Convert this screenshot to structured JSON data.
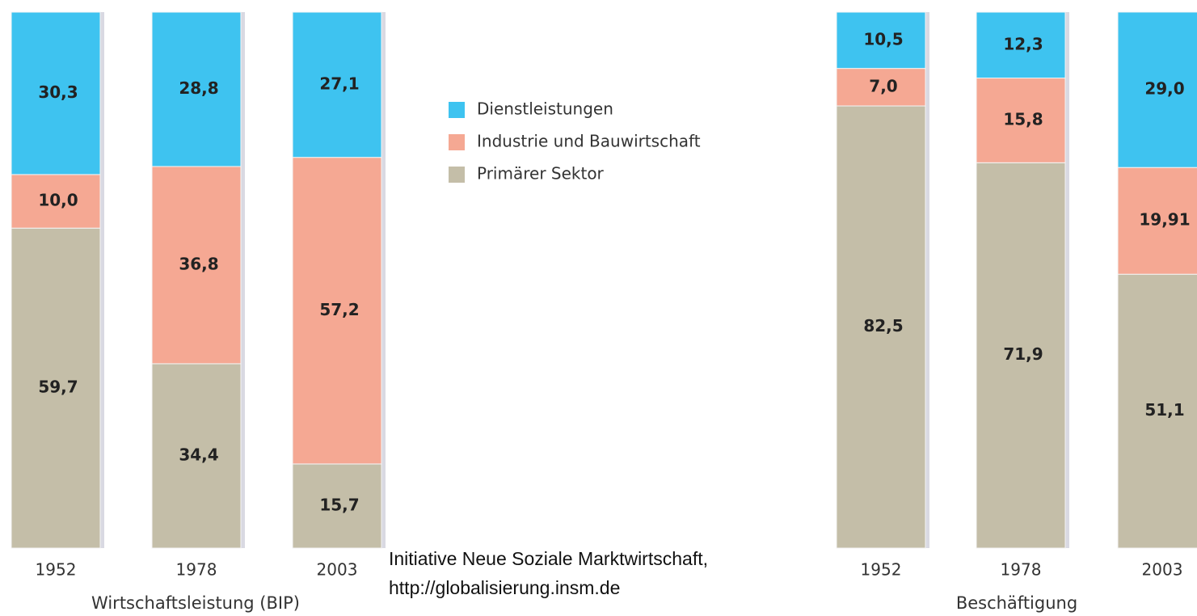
{
  "chart_data": [
    {
      "type": "bar",
      "stacked": true,
      "x_label": "Wirtschaftsleistung (BIP)",
      "categories": [
        "1952",
        "1978",
        "2003"
      ],
      "ylim": [
        0,
        100
      ],
      "series": [
        {
          "name": "Dienstleistungen",
          "color": "#3ec3f0",
          "values": [
            30.3,
            28.8,
            27.1
          ],
          "value_labels": [
            "30,3",
            "28,8",
            "27,1"
          ]
        },
        {
          "name": "Industrie und Bauwirtschaft",
          "color": "#f5a893",
          "values": [
            10.0,
            36.8,
            57.2
          ],
          "value_labels": [
            "10,0",
            "36,8",
            "57,2"
          ]
        },
        {
          "name": "Primärer Sektor",
          "color": "#c4bea8",
          "values": [
            59.7,
            34.4,
            15.7
          ],
          "value_labels": [
            "59,7",
            "34,4",
            "15,7"
          ]
        }
      ]
    },
    {
      "type": "bar",
      "stacked": true,
      "x_label": "Beschäftigung",
      "categories": [
        "1952",
        "1978",
        "2003"
      ],
      "ylim": [
        0,
        100
      ],
      "series": [
        {
          "color": "#3ec3f0",
          "values": [
            10.5,
            12.3,
            29.0
          ],
          "value_labels": [
            "10,5",
            "12,3",
            "29,0"
          ]
        },
        {
          "color": "#f5a893",
          "values": [
            7.0,
            15.8,
            19.91
          ],
          "value_labels": [
            "7,0",
            "15,8",
            "19,91"
          ]
        },
        {
          "color": "#c4bea8",
          "values": [
            82.5,
            71.9,
            51.1
          ],
          "value_labels": [
            "82,5",
            "71,9",
            "51,1"
          ]
        }
      ]
    }
  ],
  "source": [
    "Initiative Neue Soziale Marktwirtschaft,",
    "http://globalisierung.insm.de"
  ]
}
